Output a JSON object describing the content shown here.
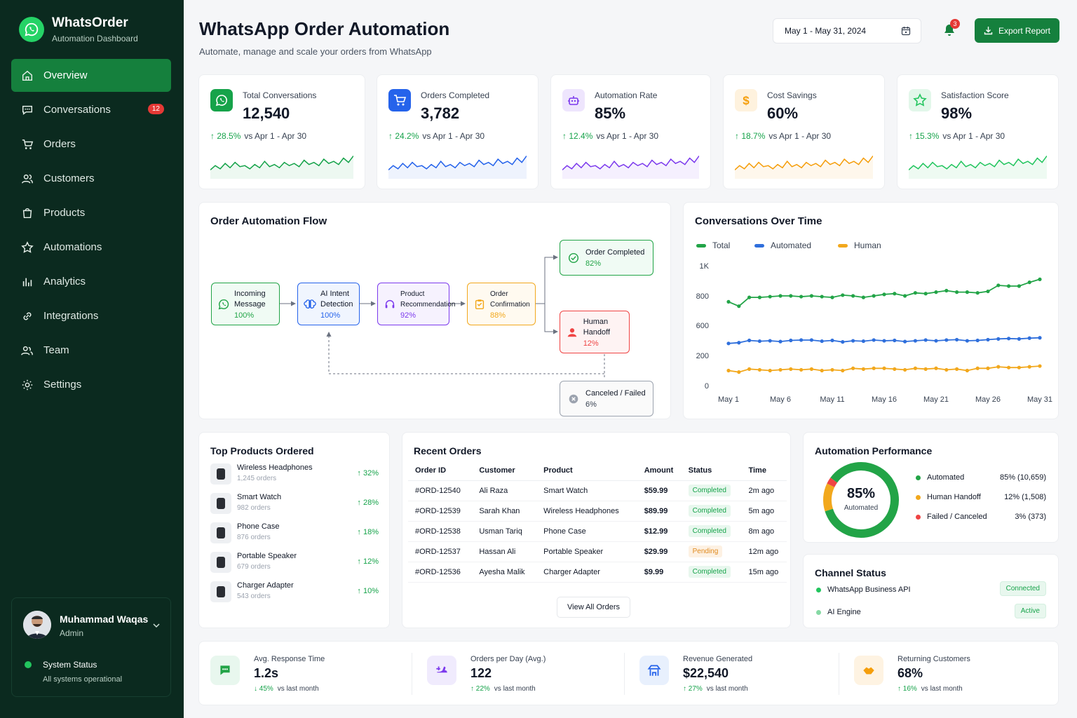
{
  "brand": {
    "name": "WhatsOrder",
    "subtitle": "Automation Dashboard"
  },
  "nav": [
    {
      "label": "Overview",
      "icon": "home-icon",
      "active": true
    },
    {
      "label": "Conversations",
      "icon": "chat-icon",
      "badge": "12"
    },
    {
      "label": "Orders",
      "icon": "cart-icon"
    },
    {
      "label": "Customers",
      "icon": "users-icon"
    },
    {
      "label": "Products",
      "icon": "box-icon"
    },
    {
      "label": "Automations",
      "icon": "star-icon"
    },
    {
      "label": "Analytics",
      "icon": "bar-chart-icon"
    },
    {
      "label": "Integrations",
      "icon": "link-icon"
    },
    {
      "label": "Team",
      "icon": "team-icon"
    },
    {
      "label": "Settings",
      "icon": "gear-icon"
    }
  ],
  "user": {
    "name": "Muhammad Waqas",
    "role": "Admin"
  },
  "system": {
    "title": "System Status",
    "subtitle": "All systems operational"
  },
  "header": {
    "title": "WhatsApp Order Automation",
    "subtitle": "Automate, manage and scale your orders from WhatsApp",
    "date_range": "May 1 - May 31, 2024",
    "notifications": "3",
    "export_label": "Export Report"
  },
  "kpis": [
    {
      "label": "Total Conversations",
      "value": "12,540",
      "change": "28.5%",
      "vs": "vs Apr 1 - Apr 30",
      "color": "#16a34a",
      "icon": "whatsapp-icon"
    },
    {
      "label": "Orders Completed",
      "value": "3,782",
      "change": "24.2%",
      "vs": "vs Apr 1 - Apr 30",
      "color": "#2563eb",
      "icon": "cart-icon"
    },
    {
      "label": "Automation Rate",
      "value": "85%",
      "change": "12.4%",
      "vs": "vs Apr 1 - Apr 30",
      "color": "#7c3aed",
      "icon": "robot-icon"
    },
    {
      "label": "Cost Savings",
      "value": "60%",
      "change": "18.7%",
      "vs": "vs Apr 1 - Apr 30",
      "color": "#f59e0b",
      "icon": "dollar-icon"
    },
    {
      "label": "Satisfaction Score",
      "value": "98%",
      "change": "15.3%",
      "vs": "vs Apr 1 - Apr 30",
      "color": "#22c55e",
      "icon": "star-icon"
    }
  ],
  "flow": {
    "title": "Order Automation Flow",
    "nodes": [
      {
        "name": "Incoming Message",
        "pct": "100%"
      },
      {
        "name": "AI Intent Detection",
        "pct": "100%"
      },
      {
        "name": "Product Recommendation",
        "pct": "92%"
      },
      {
        "name": "Order Confirmation",
        "pct": "88%"
      },
      {
        "name": "Order Completed",
        "pct": "82%"
      },
      {
        "name": "Human Handoff",
        "pct": "12%"
      },
      {
        "name": "Canceled / Failed",
        "pct": "6%"
      }
    ]
  },
  "conv_chart": {
    "title": "Conversations Over Time",
    "chart_data": {
      "type": "line",
      "title": "Conversations Over Time",
      "x": [
        "May 1",
        "May 2",
        "May 3",
        "May 4",
        "May 5",
        "May 6",
        "May 7",
        "May 8",
        "May 9",
        "May 10",
        "May 11",
        "May 12",
        "May 13",
        "May 14",
        "May 15",
        "May 16",
        "May 17",
        "May 18",
        "May 19",
        "May 20",
        "May 21",
        "May 22",
        "May 23",
        "May 24",
        "May 25",
        "May 26",
        "May 27",
        "May 28",
        "May 29",
        "May 30",
        "May 31"
      ],
      "x_ticks": [
        "May 1",
        "May 6",
        "May 11",
        "May 16",
        "May 21",
        "May 26",
        "May 31"
      ],
      "y_ticks": [
        "0",
        "200",
        "600",
        "800",
        "1K"
      ],
      "series": [
        {
          "name": "Total",
          "color": "#22a447",
          "values": [
            760,
            730,
            790,
            790,
            795,
            800,
            800,
            795,
            800,
            795,
            790,
            805,
            800,
            790,
            800,
            810,
            815,
            800,
            820,
            815,
            825,
            835,
            825,
            825,
            820,
            830,
            870,
            865,
            865,
            890,
            910
          ]
        },
        {
          "name": "Automated",
          "color": "#2f6fdc",
          "values": [
            360,
            370,
            400,
            390,
            395,
            385,
            400,
            405,
            405,
            390,
            400,
            380,
            395,
            390,
            405,
            395,
            400,
            385,
            395,
            405,
            395,
            405,
            410,
            395,
            400,
            410,
            420,
            425,
            420,
            430,
            435
          ]
        },
        {
          "name": "Human",
          "color": "#f2a81d",
          "values": [
            100,
            90,
            110,
            105,
            100,
            105,
            110,
            105,
            110,
            100,
            105,
            100,
            115,
            110,
            115,
            115,
            110,
            105,
            115,
            110,
            115,
            105,
            110,
            100,
            115,
            115,
            125,
            120,
            120,
            125,
            130
          ]
        }
      ]
    }
  },
  "top_products": {
    "title": "Top Products Ordered",
    "items": [
      {
        "name": "Wireless Headphones",
        "orders": "1,245 orders",
        "pct": "32%"
      },
      {
        "name": "Smart Watch",
        "orders": "982 orders",
        "pct": "28%"
      },
      {
        "name": "Phone Case",
        "orders": "876 orders",
        "pct": "18%"
      },
      {
        "name": "Portable Speaker",
        "orders": "679 orders",
        "pct": "12%"
      },
      {
        "name": "Charger Adapter",
        "orders": "543 orders",
        "pct": "10%"
      }
    ]
  },
  "recent_orders": {
    "title": "Recent Orders",
    "columns": [
      "Order ID",
      "Customer",
      "Product",
      "Amount",
      "Status",
      "Time"
    ],
    "rows": [
      [
        "#ORD-12540",
        "Ali Raza",
        "Smart Watch",
        "$59.99",
        "Completed",
        "2m ago"
      ],
      [
        "#ORD-12539",
        "Sarah Khan",
        "Wireless Headphones",
        "$89.99",
        "Completed",
        "5m ago"
      ],
      [
        "#ORD-12538",
        "Usman Tariq",
        "Phone Case",
        "$12.99",
        "Completed",
        "8m ago"
      ],
      [
        "#ORD-12537",
        "Hassan Ali",
        "Portable Speaker",
        "$29.99",
        "Pending",
        "12m ago"
      ],
      [
        "#ORD-12536",
        "Ayesha Malik",
        "Charger Adapter",
        "$9.99",
        "Completed",
        "15m ago"
      ]
    ],
    "view_all": "View All Orders"
  },
  "performance": {
    "title": "Automation Performance",
    "center_value": "85%",
    "center_label": "Automated",
    "items": [
      {
        "label": "Automated",
        "value": "85% (10,659)",
        "color": "#22a447",
        "share": 85
      },
      {
        "label": "Human Handoff",
        "value": "12% (1,508)",
        "color": "#f2a81d",
        "share": 12
      },
      {
        "label": "Failed / Canceled",
        "value": "3% (373)",
        "color": "#ef4444",
        "share": 3
      }
    ]
  },
  "channels": {
    "title": "Channel Status",
    "items": [
      {
        "label": "WhatsApp Business API",
        "status": "Connected",
        "color": "#22c55e"
      },
      {
        "label": "AI Engine",
        "status": "Active",
        "color": "#86d9a4"
      }
    ]
  },
  "bottom_stats": [
    {
      "label": "Avg. Response Time",
      "value": "1.2s",
      "change": "45%",
      "vs": "vs last month",
      "dir": "down",
      "bg": "#e8f7ee",
      "fg": "#22a447"
    },
    {
      "label": "Orders per Day (Avg.)",
      "value": "122",
      "change": "22%",
      "vs": "vs last month",
      "dir": "up",
      "bg": "#f0ebfd",
      "fg": "#7c3aed"
    },
    {
      "label": "Revenue Generated",
      "value": "$22,540",
      "change": "27%",
      "vs": "vs last month",
      "dir": "up",
      "bg": "#e8f0fd",
      "fg": "#2563eb"
    },
    {
      "label": "Returning Customers",
      "value": "68%",
      "change": "16%",
      "vs": "vs last month",
      "dir": "up",
      "bg": "#fef3e2",
      "fg": "#f59e0b"
    }
  ]
}
